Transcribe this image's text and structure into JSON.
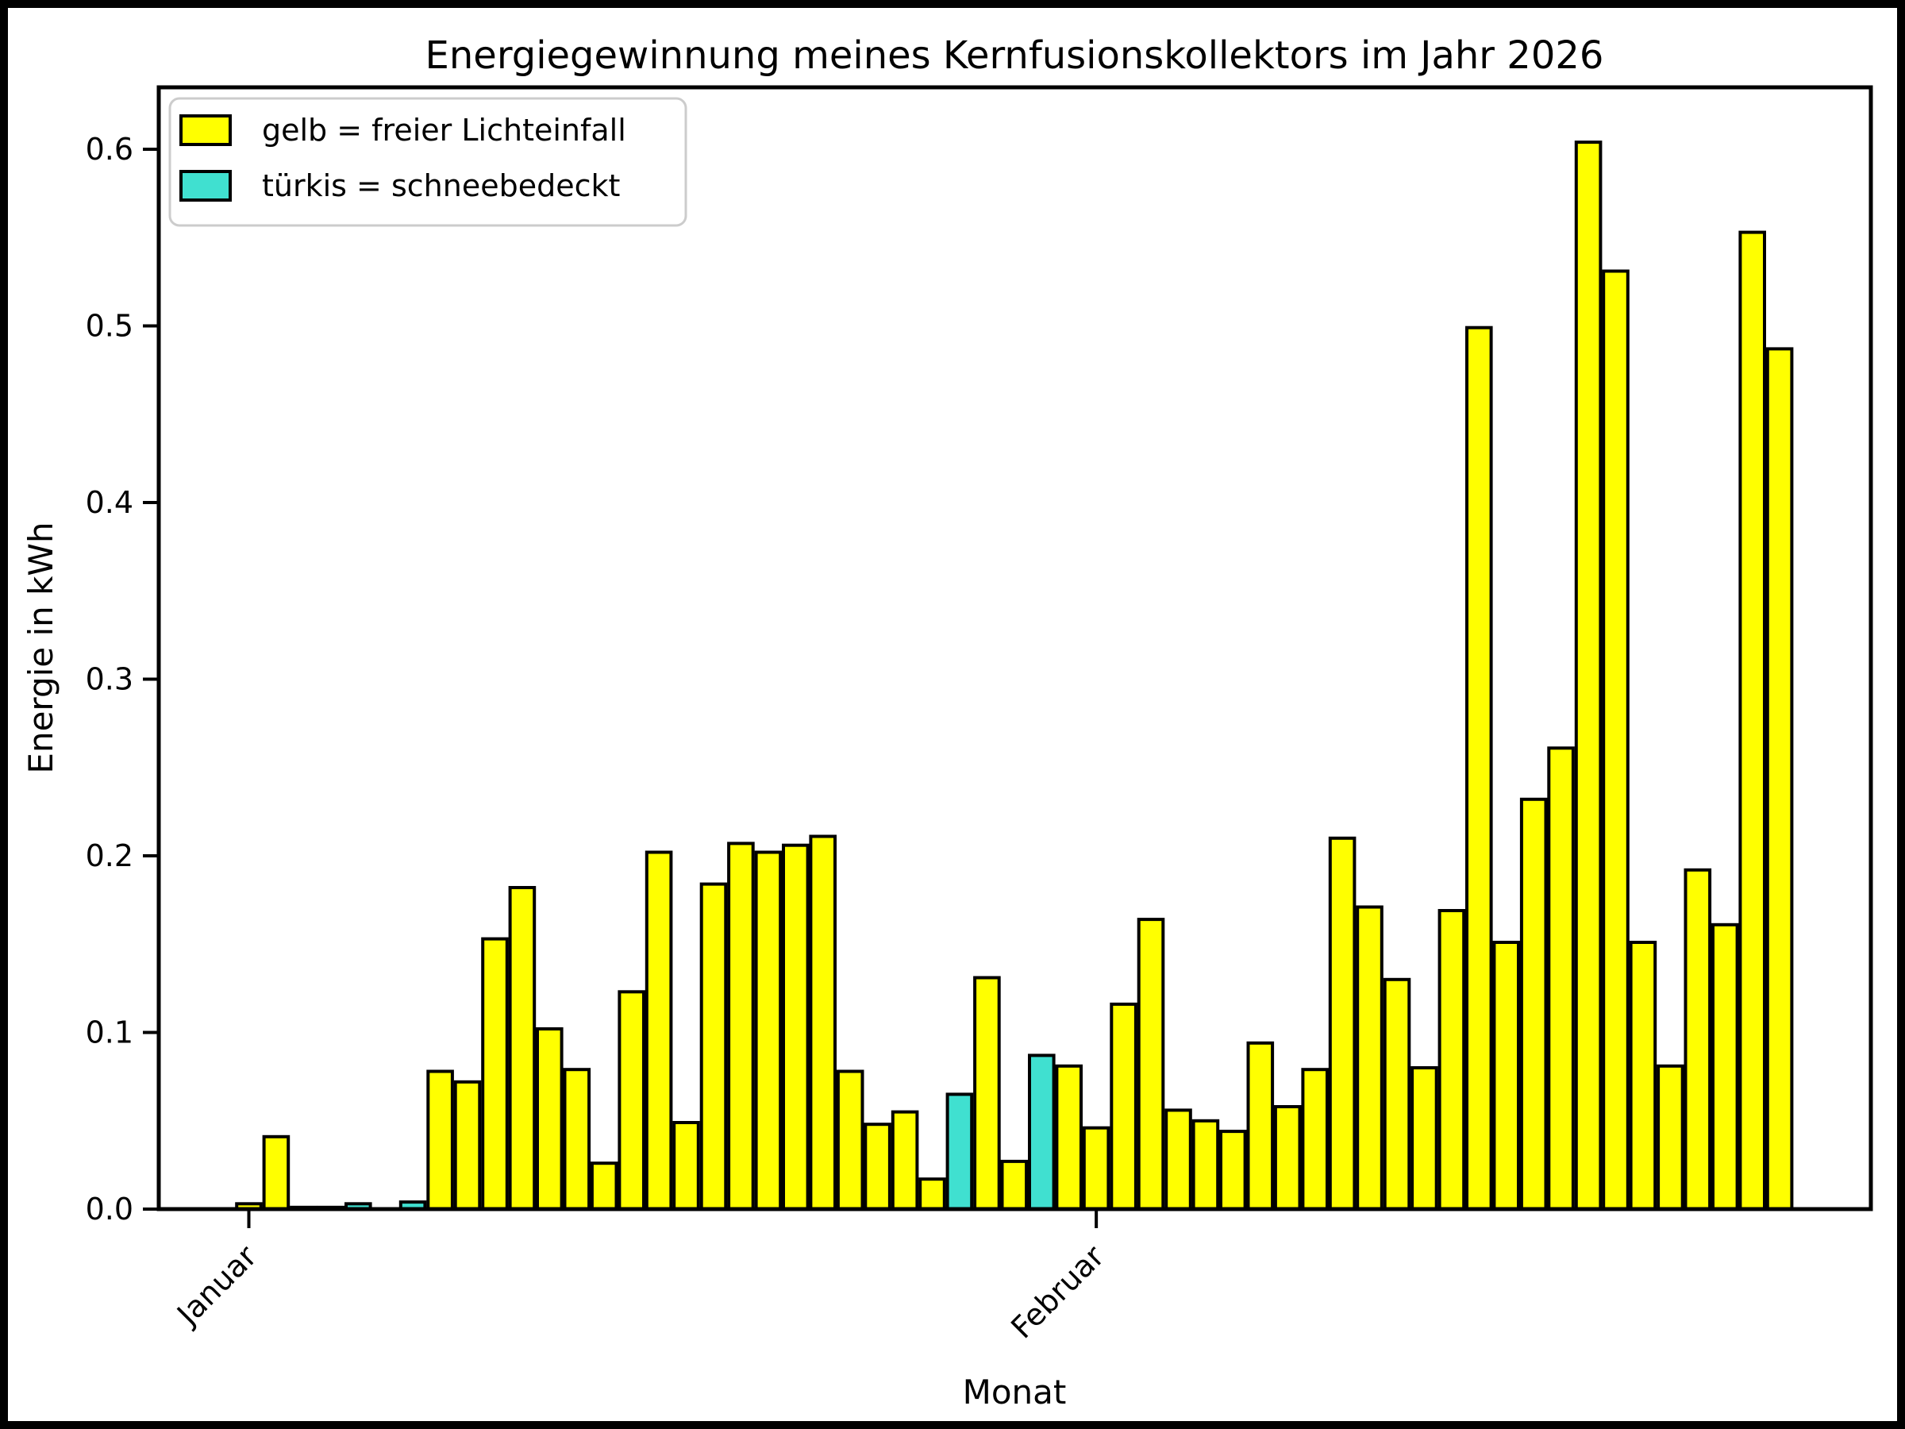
{
  "chart_data": {
    "type": "bar",
    "title": "Energiegewinnung meines Kernfusionskollektors im Jahr 2026",
    "xlabel": "Monat",
    "ylabel": "Energie in kWh",
    "ylim": [
      0,
      0.635
    ],
    "yticks": [
      0.0,
      0.1,
      0.2,
      0.3,
      0.4,
      0.5,
      0.6
    ],
    "xticks": [
      {
        "label": "Januar",
        "bar_index": 1
      },
      {
        "label": "Februar",
        "bar_index": 32
      }
    ],
    "legend": [
      {
        "label": "gelb = freier Lichteinfall",
        "color": "#ffff00"
      },
      {
        "label": "türkis = schneebedeckt",
        "color": "#40e0d0"
      }
    ],
    "bar_edge_color": "#000000",
    "background_color": "#ffffff",
    "grid": false,
    "values": [
      0.003,
      0.041,
      0.001,
      0.001,
      0.003,
      0.0,
      0.004,
      0.078,
      0.072,
      0.153,
      0.182,
      0.102,
      0.079,
      0.026,
      0.123,
      0.202,
      0.049,
      0.184,
      0.207,
      0.202,
      0.206,
      0.211,
      0.078,
      0.048,
      0.055,
      0.017,
      0.065,
      0.131,
      0.027,
      0.087,
      0.081,
      0.046,
      0.116,
      0.164,
      0.056,
      0.05,
      0.044,
      0.094,
      0.058,
      0.079,
      0.21,
      0.171,
      0.13,
      0.08,
      0.169,
      0.499,
      0.151,
      0.232,
      0.261,
      0.604,
      0.531,
      0.151,
      0.081,
      0.192,
      0.161,
      0.553,
      0.487
    ],
    "snow_bars": [
      5,
      7,
      27,
      30
    ]
  }
}
